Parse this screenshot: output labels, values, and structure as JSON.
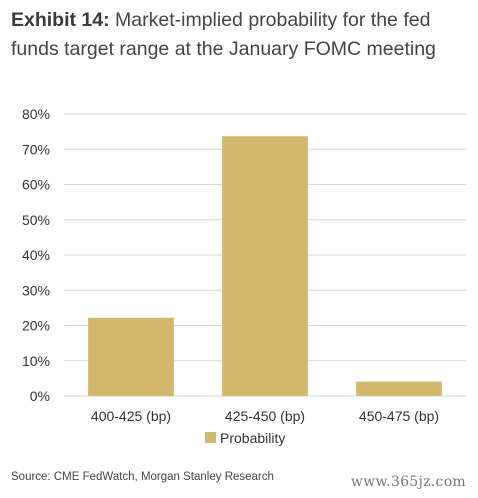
{
  "title": {
    "lead": "Exhibit 14:",
    "text": "Market-implied probability for the fed funds target range at the January FOMC meeting"
  },
  "chart_data": {
    "type": "bar",
    "categories": [
      "400-425 (bp)",
      "425-450 (bp)",
      "450-475 (bp)"
    ],
    "series": [
      {
        "name": "Probability",
        "values": [
          22.2,
          73.7,
          4.1
        ]
      }
    ],
    "ylim": [
      0,
      80
    ],
    "yticks": [
      "0%",
      "10%",
      "20%",
      "30%",
      "40%",
      "50%",
      "60%",
      "70%",
      "80%"
    ],
    "grid": true,
    "legend": "bottom",
    "bar_color": "#d1b86c",
    "grid_color": "#d9d9d9"
  },
  "source": "Source: CME FedWatch, Morgan Stanley Research",
  "watermark": "www.365jz.com"
}
